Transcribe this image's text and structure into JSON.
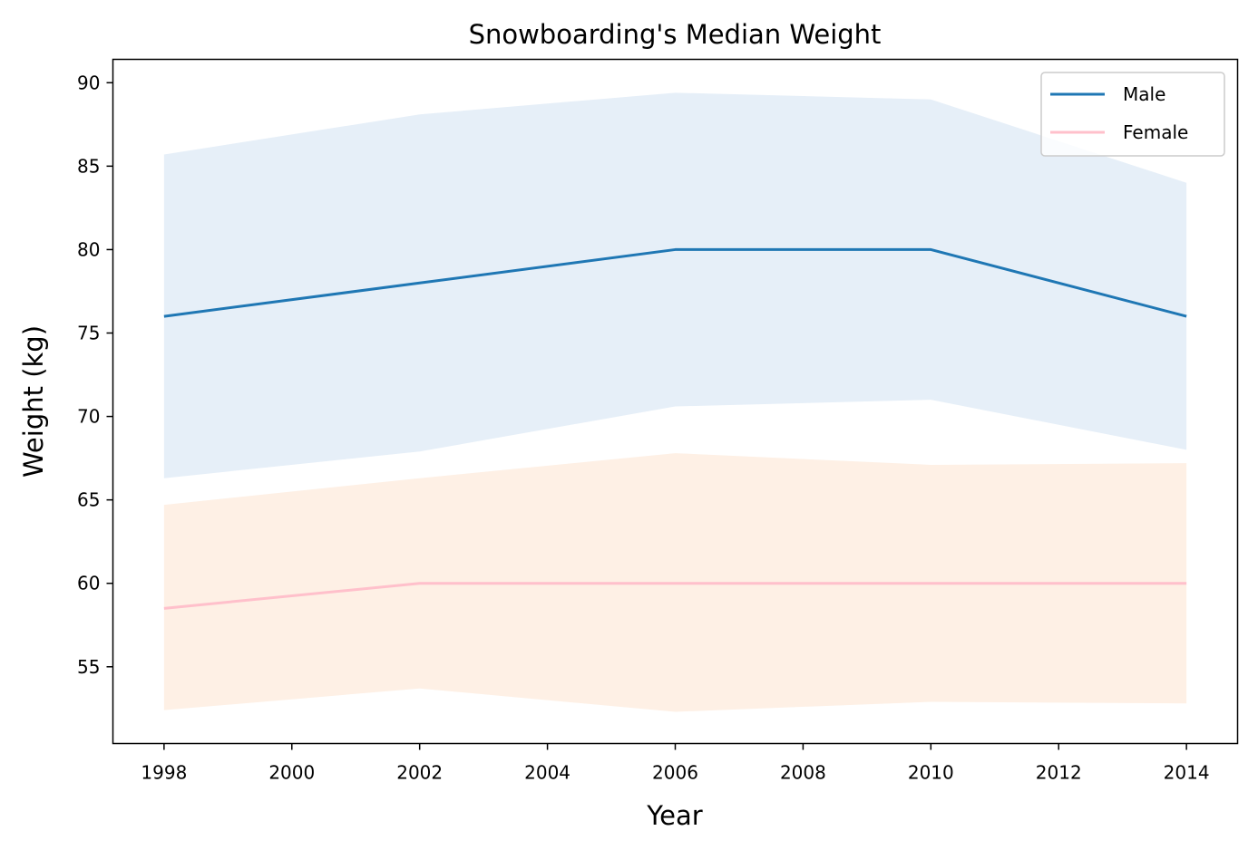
{
  "chart_data": {
    "type": "line",
    "title": "Snowboarding's Median Weight",
    "xlabel": "Year",
    "ylabel": "Weight (kg)",
    "x": [
      1998,
      2002,
      2006,
      2010,
      2014
    ],
    "xlim": [
      1997.2,
      2014.8
    ],
    "ylim": [
      50.4,
      91.4
    ],
    "xticks": [
      1998,
      2000,
      2002,
      2004,
      2006,
      2008,
      2010,
      2012,
      2014
    ],
    "yticks": [
      55,
      60,
      65,
      70,
      75,
      80,
      85,
      90
    ],
    "legend_position": "top-right",
    "grid": false,
    "series": [
      {
        "name": "Male",
        "color": "#1f77b4",
        "band_color": "#e6eff8",
        "values": [
          76,
          78,
          80,
          80,
          76
        ],
        "band_upper": [
          85.7,
          88.1,
          89.4,
          89.0,
          84.0
        ],
        "band_lower": [
          66.3,
          67.9,
          70.6,
          71.0,
          68.0
        ]
      },
      {
        "name": "Female",
        "color": "#ffc0cb",
        "band_color": "#fef0e5",
        "values": [
          58.5,
          60,
          60,
          60,
          60
        ],
        "band_upper": [
          64.7,
          66.3,
          67.8,
          67.1,
          67.2
        ],
        "band_lower": [
          52.4,
          53.7,
          52.3,
          52.9,
          52.8
        ]
      }
    ]
  }
}
